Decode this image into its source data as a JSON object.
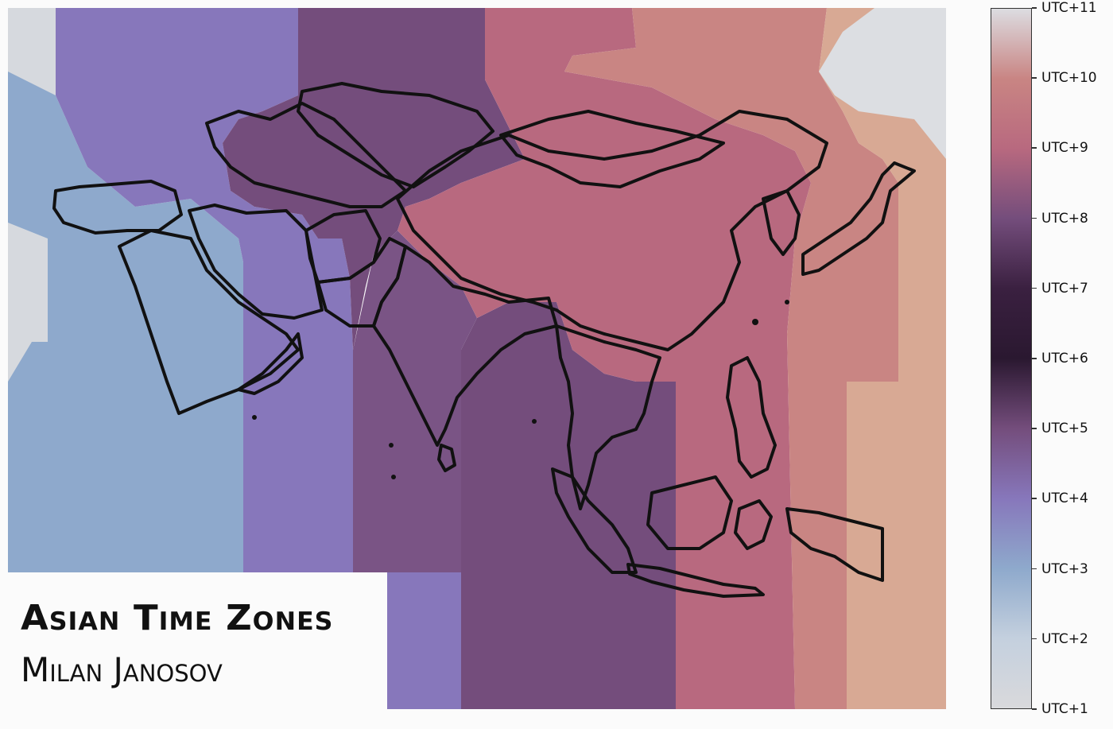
{
  "title": "Asian Time Zones",
  "author": "Milan Janosov",
  "colorbar": {
    "ticks": [
      "UTC+1",
      "UTC+2",
      "UTC+3",
      "UTC+4",
      "UTC+5",
      "UTC+6",
      "UTC+7",
      "UTC+8",
      "UTC+9",
      "UTC+10",
      "UTC+11"
    ],
    "colors": {
      "UTC+1": "#d9d9dc",
      "UTC+2": "#c4d0de",
      "UTC+3": "#8ea9cc",
      "UTC+4": "#8777bb",
      "UTC+5": "#744d7c",
      "UTC+6": "#2a1830",
      "UTC+7": "#3a2040",
      "UTC+8": "#744d7c",
      "UTC+9": "#b8697f",
      "UTC+10": "#c98583",
      "UTC+11": "#dcdde1"
    }
  },
  "map": {
    "border_color": "#111111",
    "zones": [
      {
        "utc": "UTC+1",
        "color": "#d6d9de"
      },
      {
        "utc": "UTC+2",
        "color": "#dcdee2"
      },
      {
        "utc": "UTC+3",
        "color": "#8ea9cc"
      },
      {
        "utc": "UTC+4",
        "color": "#8777bb"
      },
      {
        "utc": "UTC+5",
        "color": "#744d7c"
      },
      {
        "utc": "UTC+5.5",
        "color": "#7a5485"
      },
      {
        "utc": "UTC+6",
        "color": "#744d7c"
      },
      {
        "utc": "UTC+7",
        "color": "#744d7c"
      },
      {
        "utc": "UTC+8",
        "color": "#b8697f"
      },
      {
        "utc": "UTC+9",
        "color": "#c98583"
      },
      {
        "utc": "UTC+10",
        "color": "#d8a994"
      },
      {
        "utc": "UTC+11",
        "color": "#dcdee2"
      }
    ]
  }
}
